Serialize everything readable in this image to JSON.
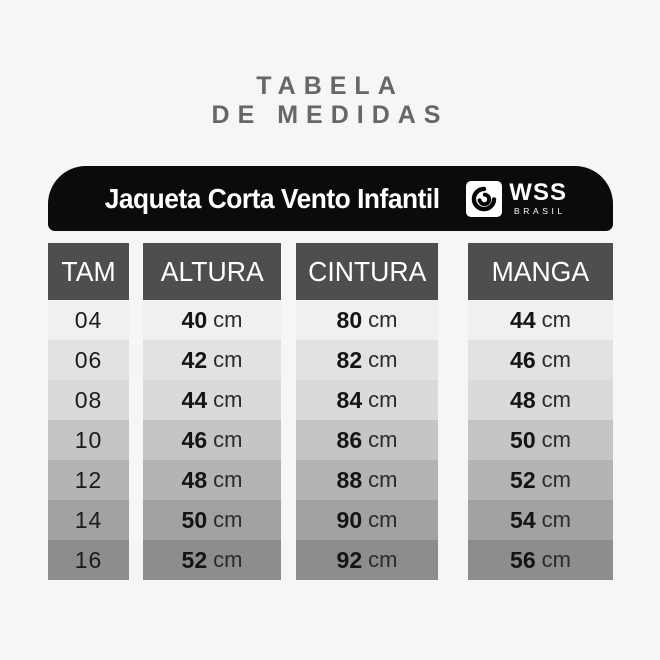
{
  "title": {
    "line1": "TABELA",
    "line2": "DE MEDIDAS",
    "color": "#676767"
  },
  "banner": {
    "text": "Jaqueta Corta Vento Infantil",
    "bg": "#0b0b0b",
    "logo": {
      "brand": "WSS",
      "sub": "BRASIL",
      "icon": "wave-swirl-icon"
    }
  },
  "table": {
    "header_bg": "#4e4e4e",
    "unit": "cm",
    "columns": [
      {
        "key": "tam",
        "header": "TAM"
      },
      {
        "key": "altura",
        "header": "ALTURA"
      },
      {
        "key": "cintura",
        "header": "CINTURA"
      },
      {
        "key": "manga",
        "header": "MANGA"
      }
    ],
    "rows": [
      {
        "tam": "04",
        "altura": "40",
        "cintura": "80",
        "manga": "44"
      },
      {
        "tam": "06",
        "altura": "42",
        "cintura": "82",
        "manga": "46"
      },
      {
        "tam": "08",
        "altura": "44",
        "cintura": "84",
        "manga": "48"
      },
      {
        "tam": "10",
        "altura": "46",
        "cintura": "86",
        "manga": "50"
      },
      {
        "tam": "12",
        "altura": "48",
        "cintura": "88",
        "manga": "52"
      },
      {
        "tam": "14",
        "altura": "50",
        "cintura": "90",
        "manga": "54"
      },
      {
        "tam": "16",
        "altura": "52",
        "cintura": "92",
        "manga": "56"
      }
    ],
    "row_shades": [
      "#f0f0ef",
      "#e2e2e1",
      "#dadad9",
      "#c5c5c4",
      "#b4b4b3",
      "#a2a2a1",
      "#8d8d8c"
    ]
  }
}
